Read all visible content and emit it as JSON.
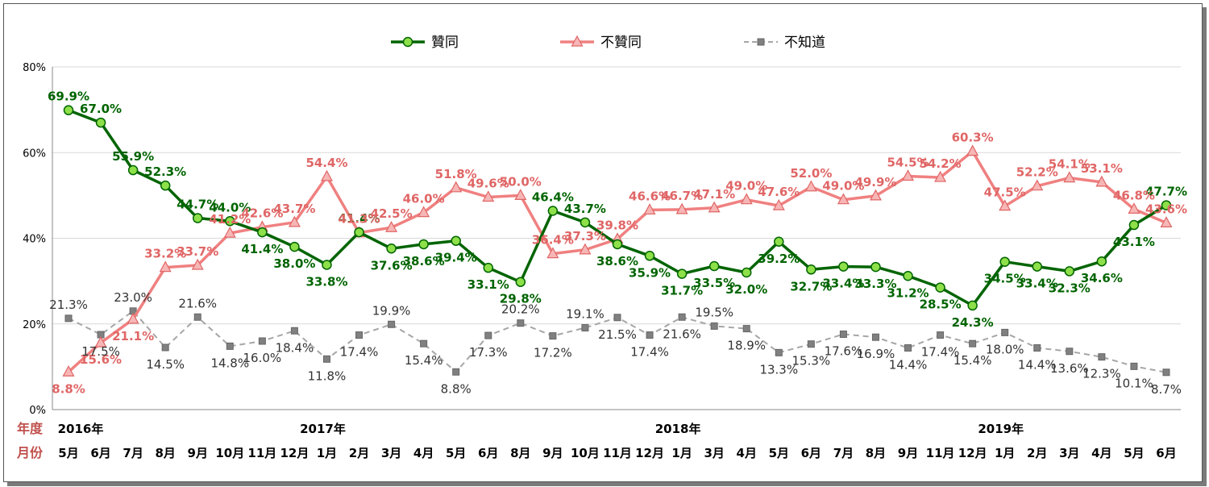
{
  "chart_data": {
    "type": "line",
    "title": "",
    "xlabel": "",
    "ylabel": "",
    "ylim": [
      0,
      80
    ],
    "yticks": [
      "0%",
      "20%",
      "40%",
      "60%",
      "80%"
    ],
    "row_labels": {
      "year": "年度",
      "month": "月份"
    },
    "years": [
      {
        "label": "2016年",
        "index": 0
      },
      {
        "label": "2017年",
        "index": 8
      },
      {
        "label": "2018年",
        "index": 19
      },
      {
        "label": "2019年",
        "index": 29
      }
    ],
    "categories": [
      "5月",
      "6月",
      "7月",
      "8月",
      "9月",
      "10月",
      "11月",
      "12月",
      "1月",
      "2月",
      "3月",
      "4月",
      "5月",
      "6月",
      "8月",
      "9月",
      "10月",
      "11月",
      "12月",
      "1月",
      "3月",
      "4月",
      "5月",
      "6月",
      "7月",
      "8月",
      "9月",
      "11月",
      "12月",
      "1月",
      "2月",
      "3月",
      "4月",
      "5月",
      "6月"
    ],
    "legend_position": "top-center",
    "grid": true,
    "series": [
      {
        "name": "贊同",
        "color": "#006400",
        "marker_fill": "#8ee04a",
        "marker": "circle",
        "style": "solid",
        "values": [
          69.9,
          67.0,
          55.9,
          52.3,
          44.7,
          44.0,
          41.4,
          38.0,
          33.8,
          41.4,
          37.6,
          38.6,
          39.4,
          33.1,
          29.8,
          46.4,
          43.7,
          38.6,
          35.9,
          31.7,
          33.5,
          32.0,
          39.2,
          32.7,
          33.4,
          33.3,
          31.2,
          28.5,
          24.3,
          34.5,
          33.4,
          32.3,
          34.6,
          43.1,
          47.7
        ],
        "labels": [
          "69.9%",
          "67.0%",
          "55.9%",
          "52.3%",
          "44.7%",
          "44.0%",
          "41.4%",
          "38.0%",
          "33.8%",
          "41.4%",
          "37.6%",
          "38.6%",
          "39.4%",
          "33.1%",
          "29.8%",
          "46.4%",
          "43.7%",
          "38.6%",
          "35.9%",
          "31.7%",
          "33.5%",
          "32.0%",
          "39.2%",
          "32.7%",
          "33.4%",
          "33.3%",
          "31.2%",
          "28.5%",
          "24.3%",
          "34.5%",
          "33.4%",
          "32.3%",
          "34.6%",
          "43.1%",
          "47.7%"
        ]
      },
      {
        "name": "不贊同",
        "color": "#f08080",
        "marker_fill": "#f7b6b6",
        "marker": "triangle",
        "style": "solid",
        "values": [
          8.8,
          15.6,
          21.1,
          33.2,
          33.7,
          41.2,
          42.6,
          43.7,
          54.4,
          41.3,
          42.5,
          46.0,
          51.8,
          49.6,
          50.0,
          36.4,
          37.3,
          39.8,
          46.6,
          46.7,
          47.1,
          49.0,
          47.6,
          52.0,
          49.0,
          49.9,
          54.5,
          54.2,
          60.3,
          47.5,
          52.2,
          54.1,
          53.1,
          46.8,
          43.6
        ],
        "labels": [
          "8.8%",
          "15.6%",
          "21.1%",
          "33.2%",
          "33.7%",
          "41.2%",
          "42.6%",
          "43.7%",
          "54.4%",
          "41.3%",
          "42.5%",
          "46.0%",
          "51.8%",
          "49.6%",
          "50.0%",
          "36.4%",
          "37.3%",
          "39.8%",
          "46.6%",
          "46.7%",
          "47.1%",
          "49.0%",
          "47.6%",
          "52.0%",
          "49.0%",
          "49.9%",
          "54.5%",
          "54.2%",
          "60.3%",
          "47.5%",
          "52.2%",
          "54.1%",
          "53.1%",
          "46.8%",
          "43.6%"
        ]
      },
      {
        "name": "不知道",
        "color": "#a6a6a6",
        "marker_fill": "#808080",
        "marker": "square",
        "style": "dashed",
        "values": [
          21.3,
          17.5,
          23.0,
          14.5,
          21.6,
          14.8,
          16.0,
          18.4,
          11.8,
          17.4,
          19.9,
          15.4,
          8.8,
          17.3,
          20.2,
          17.2,
          19.1,
          21.5,
          17.4,
          21.6,
          19.5,
          18.9,
          13.3,
          15.3,
          17.6,
          16.9,
          14.4,
          17.4,
          15.4,
          18.0,
          14.4,
          13.6,
          12.3,
          10.1,
          8.7
        ],
        "labels": [
          "21.3%",
          "17.5%",
          "23.0%",
          "14.5%",
          "21.6%",
          "14.8%",
          "16.0%",
          "18.4%",
          "11.8%",
          "17.4%",
          "19.9%",
          "15.4%",
          "8.8%",
          "17.3%",
          "20.2%",
          "17.2%",
          "19.1%",
          "21.5%",
          "17.4%",
          "21.6%",
          "19.5%",
          "18.9%",
          "13.3%",
          "15.3%",
          "17.6%",
          "16.9%",
          "14.4%",
          "17.4%",
          "15.4%",
          "18.0%",
          "14.4%",
          "13.6%",
          "12.3%",
          "10.1%",
          "8.7%"
        ]
      }
    ]
  }
}
